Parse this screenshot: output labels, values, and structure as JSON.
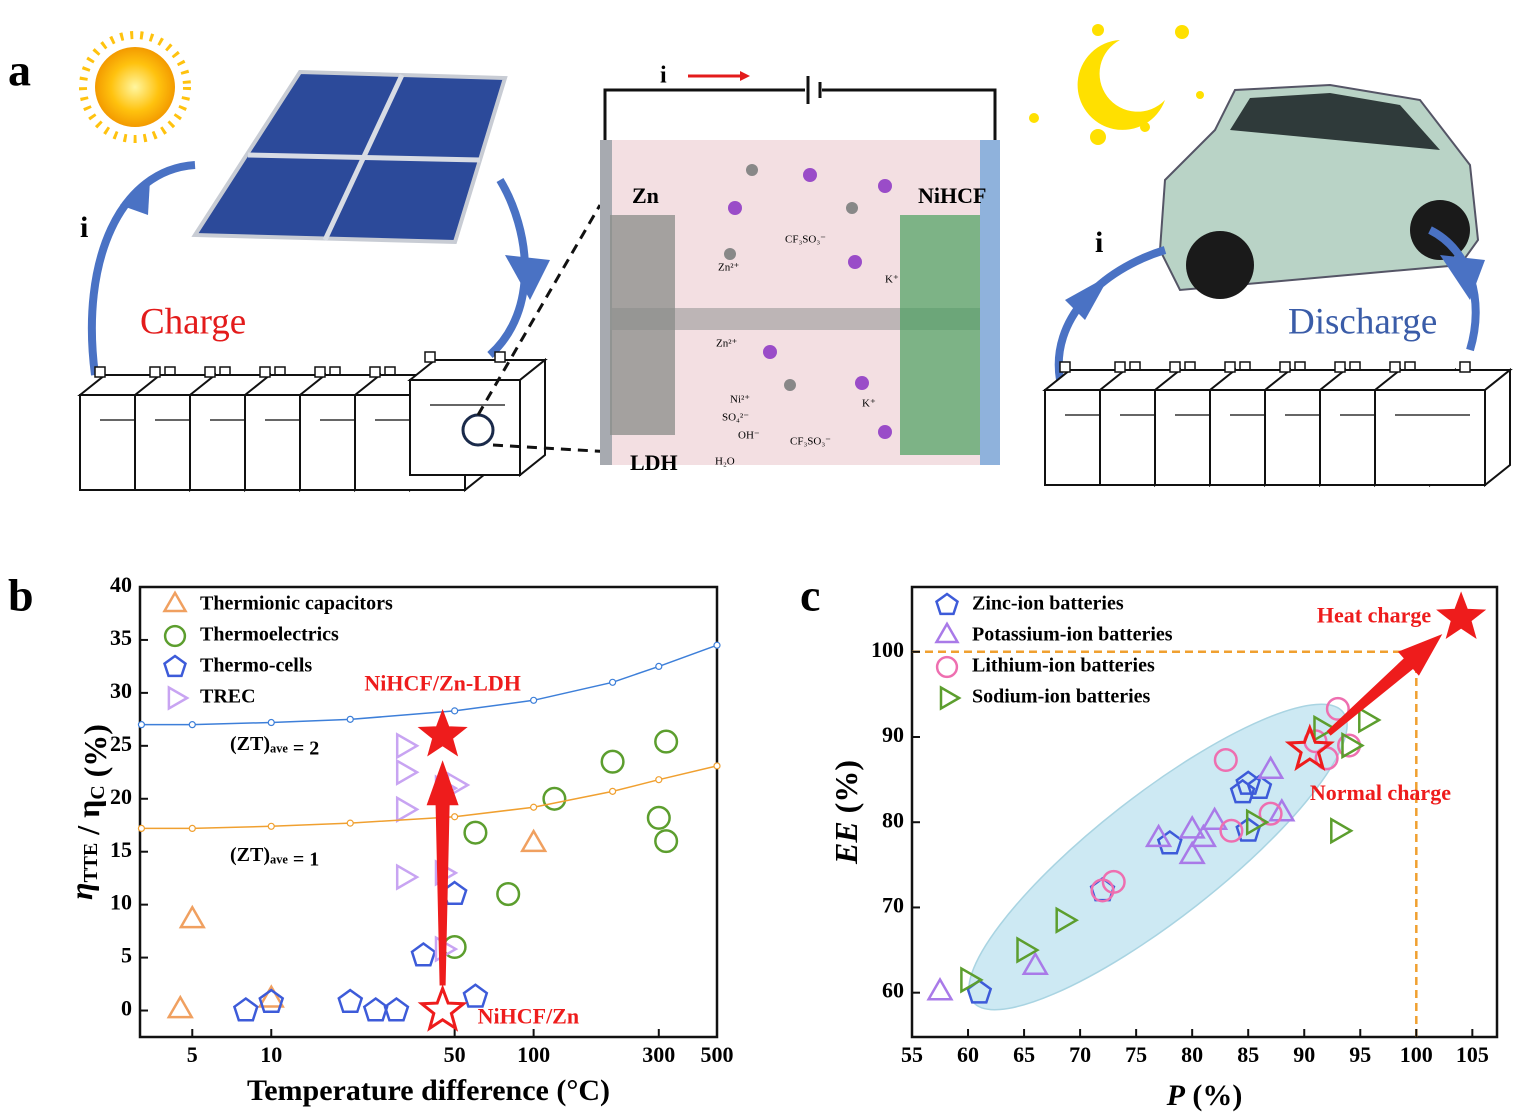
{
  "panel_labels": [
    "a",
    "b",
    "c"
  ],
  "panel_a": {
    "current_left": "i",
    "charge": "Charge",
    "current_right": "i",
    "discharge": "Discharge",
    "current_circuit": "i",
    "anode": "Zn",
    "cathode": "NiHCF",
    "layer": "LDH",
    "ions": [
      "Zn²⁺",
      "CF₃SO₃⁻",
      "K⁺",
      "Zn²⁺",
      "Ni²⁺",
      "SO₄²⁻",
      "OH⁻",
      "H₂O",
      "CF₃SO₃⁻",
      "K⁺"
    ]
  },
  "chart_data": [
    {
      "type": "scatter",
      "xscale": "log",
      "xlabel": [
        [
          "Temperature difference (°C)"
        ]
      ],
      "ylabel": [
        [
          "η",
          "TTE"
        ],
        [
          " / "
        ],
        [
          "η",
          "C"
        ],
        [
          " (%)"
        ]
      ],
      "xlim": [
        3.16,
        500
      ],
      "ylim": [
        -2.5,
        40
      ],
      "xticks": [
        5,
        10,
        50,
        100,
        300,
        500
      ],
      "yticks": [
        0,
        5,
        10,
        15,
        20,
        25,
        30,
        35,
        40
      ],
      "series": [
        {
          "name": "Thermionic capacitors",
          "color": "#f0a060",
          "marker": "triangle",
          "x": [
            4.5,
            5,
            10,
            100
          ],
          "values": [
            0,
            8.5,
            1,
            15.7
          ]
        },
        {
          "name": "Thermoelectrics",
          "color": "#5c9e2e",
          "marker": "circle",
          "x": [
            50,
            60,
            80,
            120,
            200,
            300,
            320,
            320
          ],
          "values": [
            6,
            16.8,
            11,
            20,
            23.5,
            18.2,
            25.4,
            16
          ]
        },
        {
          "name": "Thermo-cells",
          "color": "#3d5bd9",
          "marker": "pentagon",
          "x": [
            8,
            10,
            20,
            25,
            30,
            38,
            50,
            60
          ],
          "values": [
            0,
            0.8,
            0.8,
            0,
            0,
            5.2,
            11,
            1.3
          ]
        },
        {
          "name": "TREC",
          "color": "#c8a4f2",
          "marker": "right",
          "x": [
            32,
            32,
            32,
            32,
            45,
            45,
            50,
            45
          ],
          "values": [
            25,
            22.5,
            19,
            12.6,
            13,
            21,
            21.3,
            5.8
          ]
        },
        {
          "color": "#3d7fd9",
          "marker": "dot",
          "line": true,
          "x": [
            3.2,
            5,
            10,
            20,
            50,
            100,
            200,
            300,
            500
          ],
          "values": [
            27,
            27,
            27.2,
            27.5,
            28.3,
            29.3,
            31,
            32.5,
            34.5
          ]
        },
        {
          "color": "#f0a030",
          "marker": "dot",
          "line": true,
          "x": [
            3.2,
            5,
            10,
            20,
            50,
            100,
            200,
            300,
            500
          ],
          "values": [
            17.2,
            17.2,
            17.4,
            17.7,
            18.3,
            19.2,
            20.7,
            21.8,
            23.1
          ]
        }
      ],
      "points": [
        {
          "label": "NiHCF/Zn-LDH",
          "x": 45,
          "y": 26,
          "filled": true,
          "color": "#ee1c1c"
        },
        {
          "label": "NiHCF/Zn",
          "x": 45,
          "y": 0,
          "filled": false,
          "color": "#ee1c1c"
        }
      ],
      "annotations": [
        [
          [
            "(ZT)",
            "ave"
          ],
          [
            " = 2"
          ]
        ],
        [
          [
            "(ZT)",
            "ave"
          ],
          [
            " = 1"
          ]
        ]
      ]
    },
    {
      "type": "scatter",
      "xscale": "linear",
      "xlabel": [
        [
          "P"
        ],
        [
          " (%)"
        ]
      ],
      "ylabel": [
        [
          "EE"
        ],
        [
          " (%)"
        ]
      ],
      "xlim": [
        55,
        107.2
      ],
      "ylim": [
        54.8,
        107.6
      ],
      "xticks": [
        55,
        60,
        65,
        70,
        75,
        80,
        85,
        90,
        95,
        100,
        105
      ],
      "yticks": [
        60,
        70,
        80,
        90,
        100
      ],
      "series": [
        {
          "name": "Zinc-ion batteries",
          "color": "#3d5bd9",
          "marker": "pentagon",
          "x": [
            61,
            72,
            78,
            84.5,
            85,
            86,
            85
          ],
          "values": [
            60,
            72,
            77.5,
            83.5,
            84.5,
            84,
            79
          ]
        },
        {
          "name": "Potassium-ion batteries",
          "color": "#a97ae8",
          "marker": "triangle",
          "x": [
            57.5,
            66,
            77,
            80,
            80,
            81,
            82,
            87,
            88
          ],
          "values": [
            60,
            63,
            78,
            76,
            79,
            78,
            80,
            86,
            81
          ]
        },
        {
          "name": "Lithium-ion batteries",
          "color": "#ee6fb0",
          "marker": "circle",
          "x": [
            72,
            73,
            83,
            83.5,
            87,
            91,
            92,
            93,
            94
          ],
          "values": [
            72,
            73,
            87.3,
            79,
            81,
            89.5,
            87.5,
            93.3,
            89
          ]
        },
        {
          "name": "Sodium-ion batteries",
          "color": "#5c9e2e",
          "marker": "right",
          "x": [
            60,
            65,
            68.5,
            85.5,
            91.5,
            93,
            94,
            95.5
          ],
          "values": [
            61.5,
            65,
            68.5,
            80,
            91,
            79,
            89,
            92
          ]
        }
      ],
      "points": [
        {
          "label": "Heat charge",
          "x": 104,
          "y": 104,
          "filled": true,
          "color": "#ee1c1c"
        },
        {
          "label": "Normal charge",
          "x": 90.5,
          "y": 88.5,
          "filled": false,
          "color": "#ee1c1c"
        }
      ],
      "ref_x": 100,
      "ref_y": 100,
      "ref_color": "#f0a030"
    }
  ]
}
